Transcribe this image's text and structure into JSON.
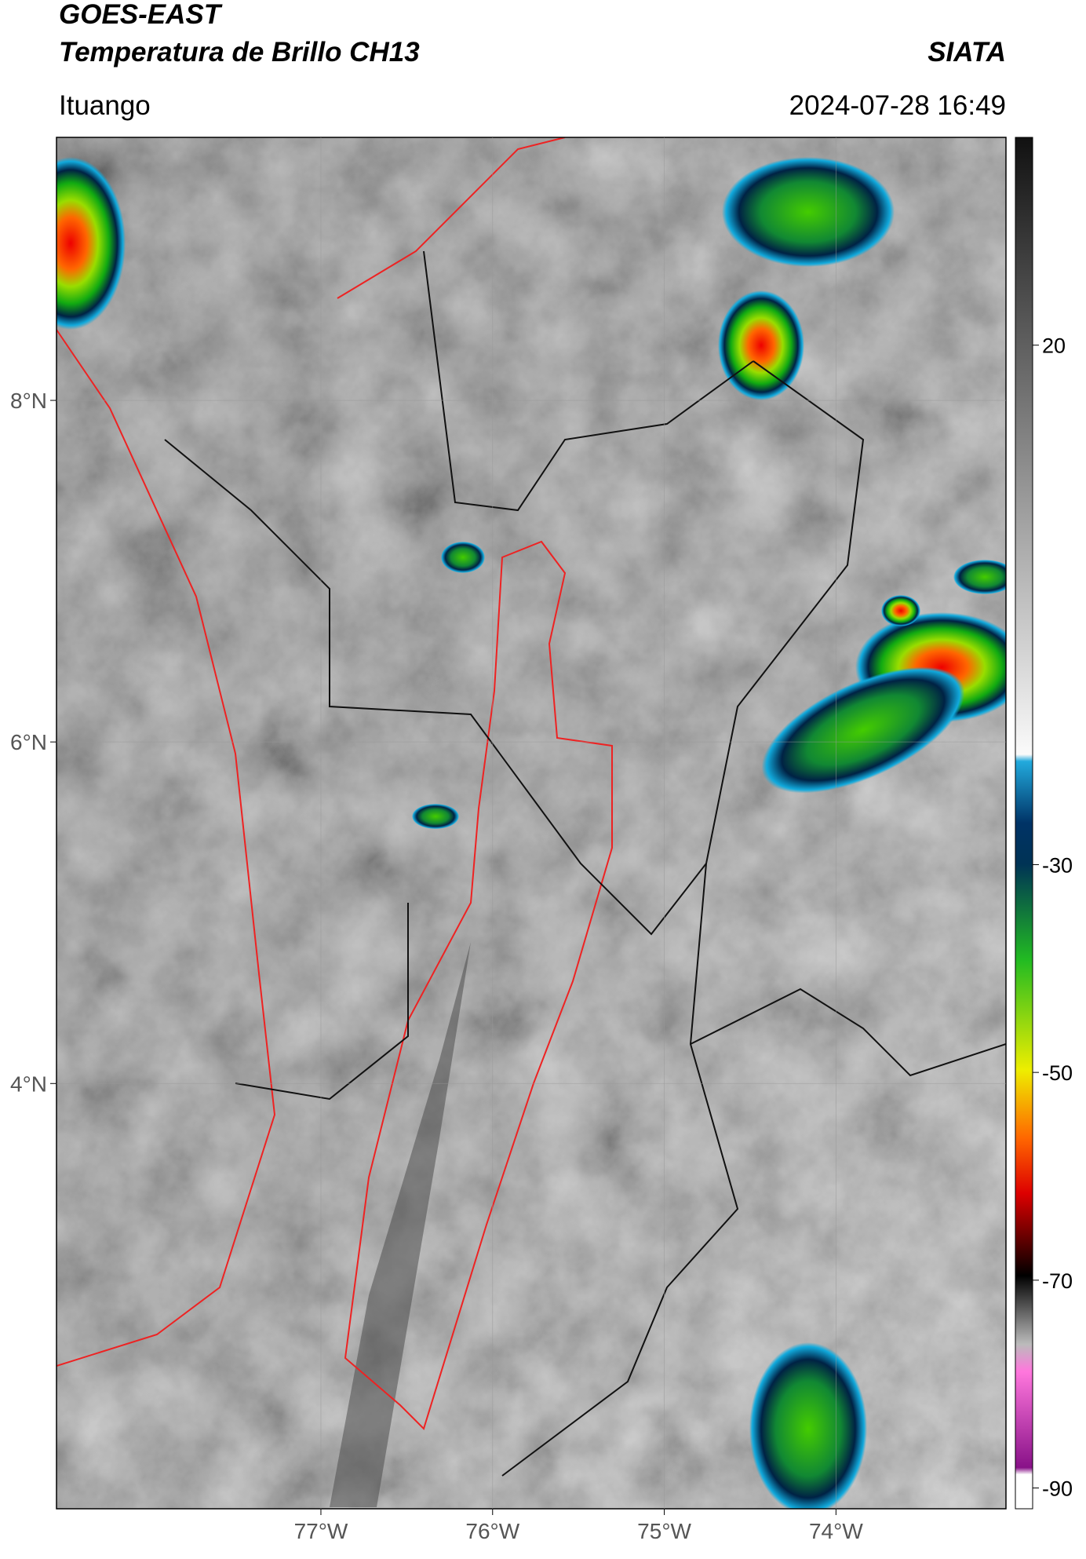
{
  "header": {
    "title": "GOES-EAST",
    "subtitle": "Temperatura de Brillo CH13",
    "source": "SIATA",
    "location": "Ituango",
    "datetime": "2024-07-28 16:49"
  },
  "map": {
    "xlim": [
      -78.54,
      -73.01
    ],
    "ylim": [
      1.51,
      9.54
    ],
    "xticks": [
      {
        "value": -77,
        "label": "77°W"
      },
      {
        "value": -76,
        "label": "76°W"
      },
      {
        "value": -75,
        "label": "75°W"
      },
      {
        "value": -74,
        "label": "74°W"
      }
    ],
    "yticks": [
      {
        "value": 8,
        "label": "8°N"
      },
      {
        "value": 6,
        "label": "6°N"
      },
      {
        "value": 4,
        "label": "4°N"
      }
    ],
    "grid": true
  },
  "colorbar": {
    "lim": [
      -92,
      40
    ],
    "ticks": [
      20,
      -30,
      -50,
      -70,
      -90
    ]
  }
}
